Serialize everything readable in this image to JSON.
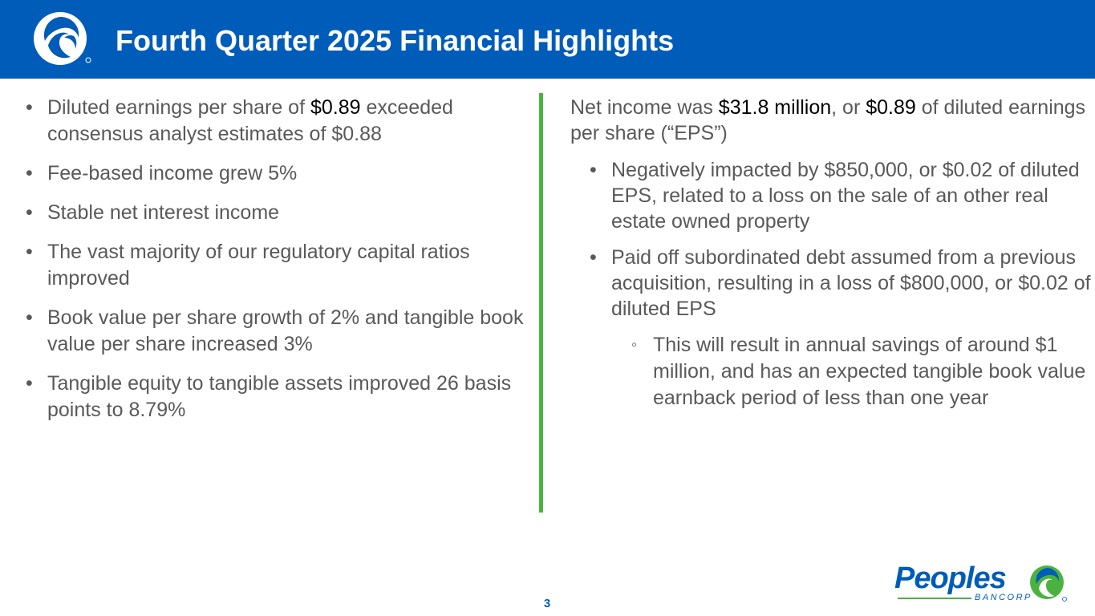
{
  "header": {
    "title": "Fourth Quarter 2025 Financial Highlights",
    "logo_icon": "peoples-swirl-logo-icon",
    "background": "#005cb9"
  },
  "left_column": {
    "bullet_glyph": "•",
    "bullets": [
      {
        "pre": "Diluted earnings per share of ",
        "highlight": "$0.89",
        "post": " exceeded consensus analyst estimates of $0.88"
      },
      {
        "text": "Fee-based income grew 5%"
      },
      {
        "text": "Stable net interest income"
      },
      {
        "text": "The vast majority of our regulatory capital ratios improved"
      },
      {
        "text": "Book value per share growth of 2% and tangible book value per share increased 3%"
      },
      {
        "text": "Tangible equity to tangible assets improved 26 basis points to 8.79%"
      }
    ]
  },
  "right_column": {
    "lead": {
      "part1": "Net income was ",
      "highlight1": "$31.8 million",
      "part2": ", or ",
      "highlight2": "$0.89",
      "part3": " of diluted earnings per share (“EPS”)"
    },
    "sub_bullet_glyph": "•",
    "sub_bullets": [
      "Negatively impacted by $850,000, or $0.02 of diluted EPS, related to a loss on the sale of an other real estate owned property",
      "Paid off subordinated debt assumed from a previous acquisition, resulting in a loss of $800,000, or $0.02 of diluted EPS"
    ],
    "subsub_bullet_glyph": "◦",
    "subsub_bullets": [
      "This will result in annual savings of around $1 million, and has an expected tangible book value earnback period of less than one year"
    ]
  },
  "footer": {
    "page_number": "3",
    "brand_name": "Peoples",
    "brand_sub": "BANCORP",
    "brand_icon": "peoples-swirl-logo-icon"
  },
  "colors": {
    "brand_blue": "#005cb9",
    "accent_green": "#4ab33e",
    "body_text": "#595959"
  }
}
